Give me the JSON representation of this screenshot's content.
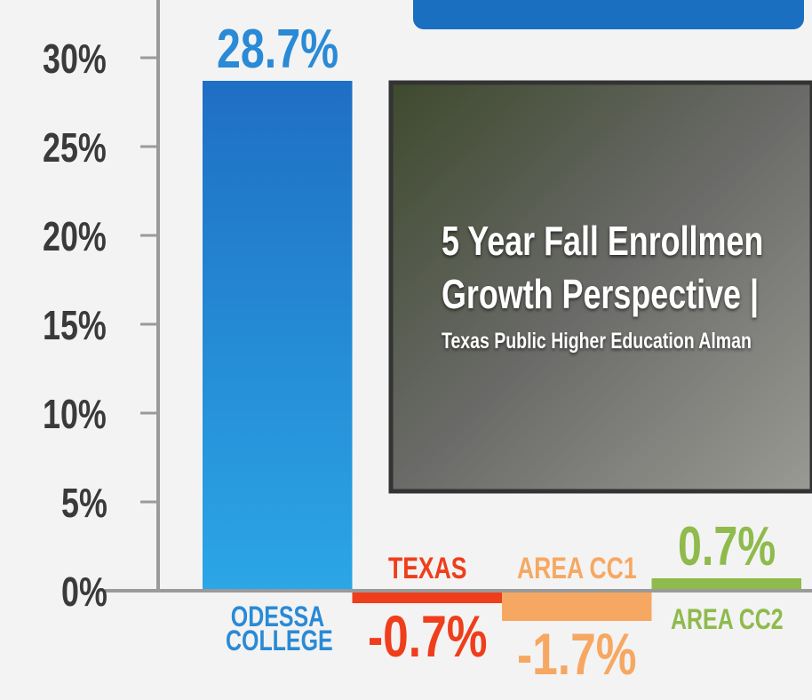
{
  "chart_data": {
    "type": "bar",
    "categories": [
      "ODESSA COLLEGE",
      "TEXAS",
      "AREA CC1",
      "AREA CC2"
    ],
    "values": [
      28.7,
      -0.7,
      -1.7,
      0.7
    ],
    "value_labels": [
      "28.7%",
      "-0.7%",
      "-1.7%",
      "0.7%"
    ],
    "colors": [
      "#2a8ad6",
      "#ef3e1c",
      "#f6a862",
      "#8fba4c"
    ],
    "ylim": [
      -6,
      33
    ],
    "yticks": [
      {
        "value": 0,
        "label": "0%"
      },
      {
        "value": 5,
        "label": "5%"
      },
      {
        "value": 10,
        "label": "10%"
      },
      {
        "value": 15,
        "label": "15%"
      },
      {
        "value": 20,
        "label": "20%"
      },
      {
        "value": 25,
        "label": "25%"
      },
      {
        "value": 30,
        "label": "30%"
      }
    ]
  },
  "video_card": {
    "title_lines": [
      "5 Year Fall Enrollmen",
      "Growth Perspective |"
    ],
    "subtitle": "Texas Public Higher Education Alman"
  }
}
